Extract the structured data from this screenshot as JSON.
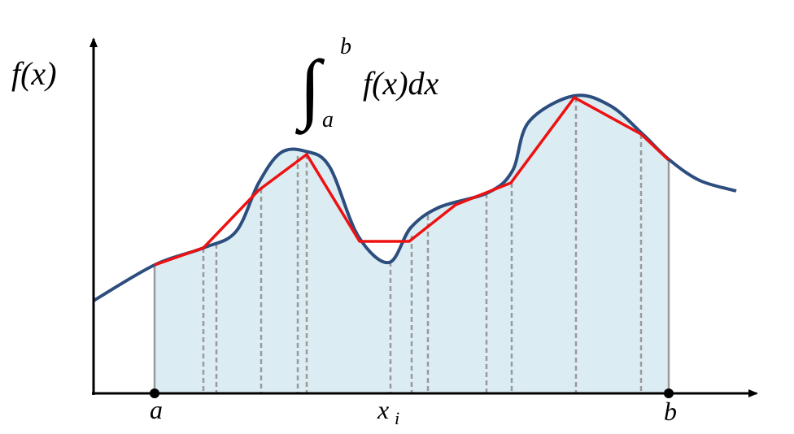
{
  "y_axis_label": "f(x)",
  "integral": {
    "symbol": "∫",
    "upper": "b",
    "lower": "a",
    "integrand": "f(x)dx"
  },
  "x_labels": {
    "a": "a",
    "xi": "x",
    "xi_subscript": "i",
    "b": "b"
  }
}
